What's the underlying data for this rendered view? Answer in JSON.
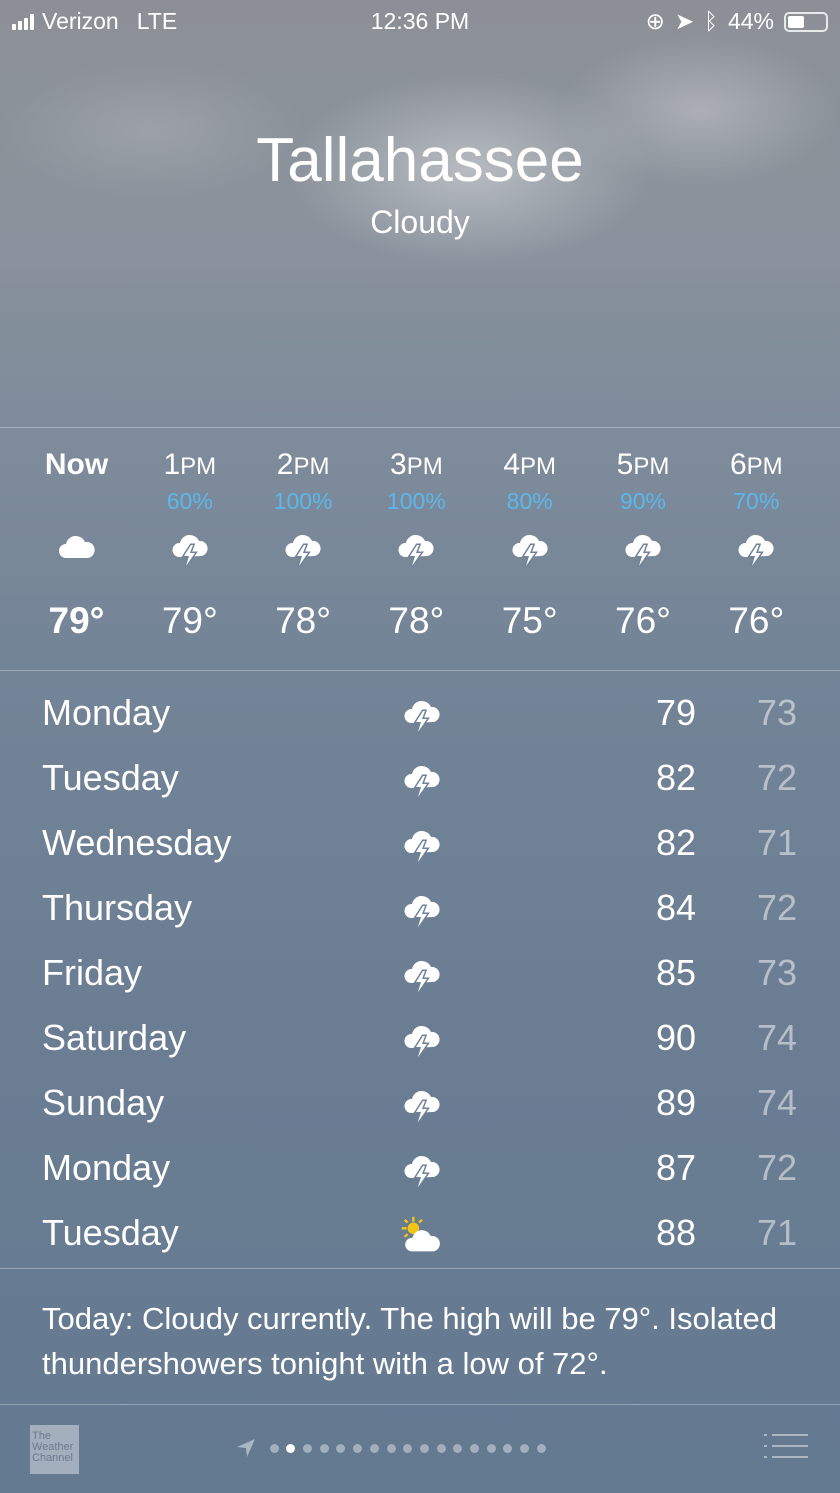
{
  "status_bar": {
    "carrier": "Verizon",
    "network": "LTE",
    "time": "12:36 PM",
    "battery": "44%",
    "battery_level": 0.44,
    "icons": [
      "orientation-lock-icon",
      "location-icon",
      "bluetooth-icon"
    ]
  },
  "location": {
    "city": "Tallahassee",
    "condition": "Cloudy"
  },
  "hourly": [
    {
      "time": "Now",
      "precip": "",
      "icon": "cloud",
      "temp": "79°"
    },
    {
      "time": "1PM",
      "precip": "60%",
      "icon": "thunderstorm",
      "temp": "79°"
    },
    {
      "time": "2PM",
      "precip": "100%",
      "icon": "thunderstorm",
      "temp": "78°"
    },
    {
      "time": "3PM",
      "precip": "100%",
      "icon": "thunderstorm",
      "temp": "78°"
    },
    {
      "time": "4PM",
      "precip": "80%",
      "icon": "thunderstorm",
      "temp": "75°"
    },
    {
      "time": "5PM",
      "precip": "90%",
      "icon": "thunderstorm",
      "temp": "76°"
    },
    {
      "time": "6PM",
      "precip": "70%",
      "icon": "thunderstorm",
      "temp": "76°"
    }
  ],
  "daily": [
    {
      "day": "Monday",
      "icon": "thunderstorm",
      "high": "79",
      "low": "73"
    },
    {
      "day": "Tuesday",
      "icon": "thunderstorm",
      "high": "82",
      "low": "72"
    },
    {
      "day": "Wednesday",
      "icon": "thunderstorm",
      "high": "82",
      "low": "71"
    },
    {
      "day": "Thursday",
      "icon": "thunderstorm",
      "high": "84",
      "low": "72"
    },
    {
      "day": "Friday",
      "icon": "thunderstorm",
      "high": "85",
      "low": "73"
    },
    {
      "day": "Saturday",
      "icon": "thunderstorm",
      "high": "90",
      "low": "74"
    },
    {
      "day": "Sunday",
      "icon": "thunderstorm",
      "high": "89",
      "low": "74"
    },
    {
      "day": "Monday",
      "icon": "thunderstorm",
      "high": "87",
      "low": "72"
    },
    {
      "day": "Tuesday",
      "icon": "partly-sunny",
      "high": "88",
      "low": "71"
    }
  ],
  "summary": "Today: Cloudy currently. The high will be 79°. Isolated thundershowers tonight with a low of 72°.",
  "bottom_bar": {
    "logo": "The Weather Channel",
    "page_count": 17,
    "active_page": 2
  },
  "colors": {
    "precip": "#5ab8ec",
    "background": "#6a7d93"
  }
}
